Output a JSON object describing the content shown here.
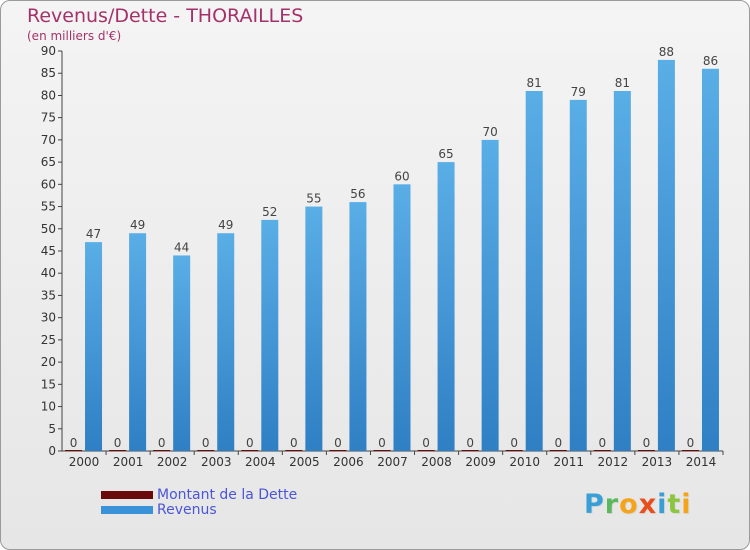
{
  "title": "Revenus/Dette - THORAILLES",
  "subtitle": "(en milliers d'€)",
  "logo": {
    "letters": [
      "P",
      "r",
      "o",
      "x",
      "i",
      "t",
      "i"
    ]
  },
  "chart_data": {
    "type": "bar",
    "title": "Revenus/Dette - THORAILLES",
    "subtitle": "(en milliers d'€)",
    "categories": [
      "2000",
      "2001",
      "2002",
      "2003",
      "2004",
      "2005",
      "2006",
      "2007",
      "2008",
      "2009",
      "2010",
      "2011",
      "2012",
      "2013",
      "2014"
    ],
    "series": [
      {
        "name": "Montant de la Dette",
        "color": "#6b0a0a",
        "values": [
          0,
          0,
          0,
          0,
          0,
          0,
          0,
          0,
          0,
          0,
          0,
          0,
          0,
          0,
          0
        ]
      },
      {
        "name": "Revenus",
        "color": "#3a93d8",
        "values": [
          47,
          49,
          44,
          49,
          52,
          55,
          56,
          60,
          65,
          70,
          81,
          79,
          81,
          88,
          86
        ]
      }
    ],
    "ylim": [
      0,
      90
    ],
    "yticks": [
      0,
      5,
      10,
      15,
      20,
      25,
      30,
      35,
      40,
      45,
      50,
      55,
      60,
      65,
      70,
      75,
      80,
      85,
      90
    ],
    "grid": false,
    "legend": "bottom-left"
  }
}
